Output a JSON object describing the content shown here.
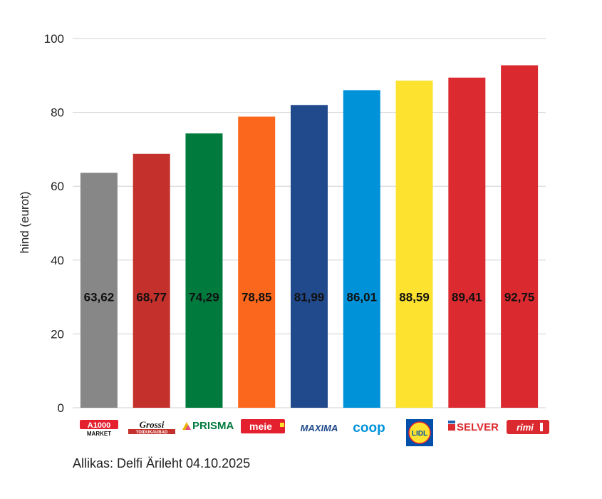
{
  "chart_data": {
    "type": "bar",
    "categories": [
      "A1000 MARKET",
      "Grossi TOIDUKAUBAD",
      "PRISMA",
      "meie",
      "MAXIMA",
      "coop",
      "LIDL",
      "SELVER",
      "rimi"
    ],
    "values": [
      63.62,
      68.77,
      74.29,
      78.85,
      81.99,
      86.01,
      88.59,
      89.41,
      92.75
    ],
    "value_labels": [
      "63,62",
      "68,77",
      "74,29",
      "78,85",
      "81,99",
      "86,01",
      "88,59",
      "89,41",
      "92,75"
    ],
    "colors": [
      "#878787",
      "#c4302b",
      "#017a3e",
      "#fb671d",
      "#214a8c",
      "#0092d9",
      "#fde330",
      "#dc2b30",
      "#da2a2f"
    ],
    "ylabel": "hind (eurot)",
    "xlabel": "",
    "ylim": [
      0,
      100
    ],
    "yticks": [
      0,
      20,
      40,
      60,
      80,
      100
    ],
    "grid": true,
    "legend": "none"
  },
  "logos": {
    "a1000": {
      "line1": "A1000",
      "line2": "MARKET"
    },
    "grossi": {
      "line1": "Grossi",
      "line2": "TOIDUKAUBAD"
    },
    "prisma": {
      "text": "PRISMA"
    },
    "meie": {
      "text": "meie"
    },
    "maxima": {
      "text": "MAXIMA"
    },
    "coop": {
      "text": "coop"
    },
    "lidl": {
      "text": "LIDL"
    },
    "selver": {
      "text": "SELVER"
    },
    "rimi": {
      "text": "rimi"
    }
  },
  "source": "Allikas: Delfi Ärileht 04.10.2025"
}
